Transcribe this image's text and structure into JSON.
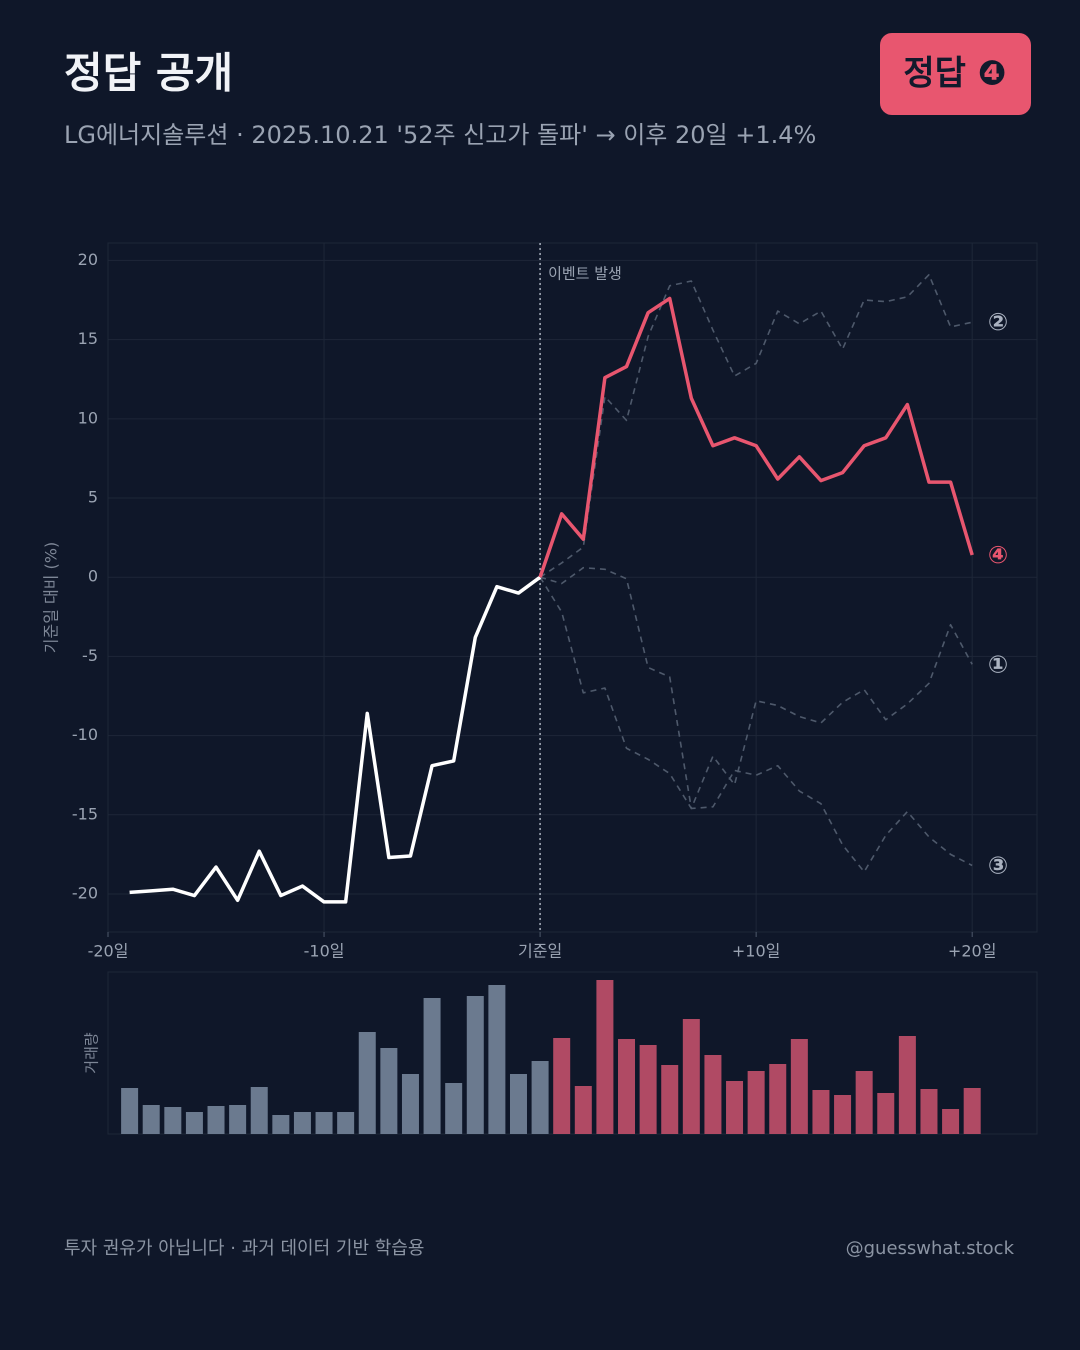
{
  "header": {
    "title": "정답 공개",
    "subtitle": "LG에너지솔루션 · 2025.10.21 '52주 신고가 돌파' → 이후 20일 +1.4%",
    "badge": "정답 ❹"
  },
  "footer": {
    "note": "투자 권유가 아닙니다 · 과거 데이터 기반 학습용",
    "handle": "@guesswhat.stock"
  },
  "chart_data": [
    {
      "type": "line",
      "ylabel": "기준일 대비 (%)",
      "annotation": "이벤트 발생",
      "event_x": 0,
      "xlim": [
        -20,
        23
      ],
      "ylim": [
        -22.4,
        21.1
      ],
      "xticks": [
        {
          "value": -20,
          "label": "-20일"
        },
        {
          "value": -10,
          "label": "-10일"
        },
        {
          "value": 0,
          "label": "기준일"
        },
        {
          "value": 10,
          "label": "+10일"
        },
        {
          "value": 20,
          "label": "+20일"
        }
      ],
      "yticks": [
        -20,
        -15,
        -10,
        -5,
        0,
        5,
        10,
        15,
        20
      ],
      "grid": true,
      "series": [
        {
          "color": "#4e596b",
          "dashed": true,
          "name": "②",
          "x": [
            0,
            1,
            2,
            3,
            4,
            5,
            6,
            7,
            8,
            9,
            10,
            11,
            12,
            13,
            14,
            15,
            16,
            17,
            18,
            19,
            20
          ],
          "values": [
            0,
            0.9,
            1.9,
            11.4,
            9.9,
            15.2,
            18.4,
            18.7,
            15.6,
            12.7,
            13.5,
            16.8,
            16.0,
            16.8,
            14.4,
            17.5,
            17.4,
            17.7,
            19.1,
            15.8,
            16.1
          ]
        },
        {
          "color": "#4e596b",
          "dashed": true,
          "name": "①",
          "x": [
            0,
            1,
            2,
            3,
            4,
            5,
            6,
            7,
            8,
            9,
            10,
            11,
            12,
            13,
            14,
            15,
            16,
            17,
            18,
            19,
            20
          ],
          "values": [
            0,
            -2.2,
            -7.3,
            -7.0,
            -10.8,
            -11.5,
            -12.4,
            -14.6,
            -11.3,
            -13.1,
            -7.8,
            -8.1,
            -8.8,
            -9.2,
            -7.9,
            -7.1,
            -9.0,
            -8.0,
            -6.7,
            -3.0,
            -5.5
          ]
        },
        {
          "color": "#4e596b",
          "dashed": true,
          "name": "③",
          "x": [
            0,
            1,
            2,
            3,
            4,
            5,
            6,
            7,
            8,
            9,
            10,
            11,
            12,
            13,
            14,
            15,
            16,
            17,
            18,
            19,
            20
          ],
          "values": [
            0,
            -0.4,
            0.6,
            0.5,
            -0.1,
            -5.7,
            -6.3,
            -14.6,
            -14.5,
            -12.2,
            -12.5,
            -11.9,
            -13.5,
            -14.3,
            -16.9,
            -18.6,
            -16.3,
            -14.8,
            -16.4,
            -17.5,
            -18.2
          ]
        },
        {
          "color": "#ffffff",
          "dashed": false,
          "x": [
            -19,
            -18,
            -17,
            -16,
            -15,
            -14,
            -13,
            -12,
            -11,
            -10,
            -9,
            -8,
            -7,
            -6,
            -5,
            -4,
            -3,
            -2,
            -1,
            0
          ],
          "values": [
            -19.9,
            -19.8,
            -19.7,
            -20.1,
            -18.3,
            -20.4,
            -17.3,
            -20.1,
            -19.5,
            -20.5,
            -20.5,
            -8.6,
            -17.7,
            -17.6,
            -11.9,
            -11.6,
            -3.8,
            -0.6,
            -1.0,
            0
          ]
        },
        {
          "color": "#e8566f",
          "dashed": false,
          "name": "④",
          "x": [
            0,
            1,
            2,
            3,
            4,
            5,
            6,
            7,
            8,
            9,
            10,
            11,
            12,
            13,
            14,
            15,
            16,
            17,
            18,
            19,
            20
          ],
          "values": [
            0,
            4.0,
            2.4,
            12.6,
            13.3,
            16.7,
            17.6,
            11.3,
            8.3,
            8.8,
            8.3,
            6.2,
            7.6,
            6.1,
            6.6,
            8.3,
            8.8,
            10.9,
            6.0,
            6.0,
            1.4
          ]
        }
      ]
    },
    {
      "type": "bar",
      "ylabel": "거래량",
      "xlim": [
        -20,
        23
      ],
      "ylim": [
        0,
        162
      ],
      "series": [
        {
          "color": "#6b7a8f",
          "x": [
            -19,
            -18,
            -17,
            -16,
            -15,
            -14,
            -13,
            -12,
            -11,
            -10,
            -9,
            -8,
            -7,
            -6,
            -5,
            -4,
            -3,
            -2,
            -1,
            0
          ],
          "values": [
            46,
            29,
            27,
            22,
            28,
            29,
            47,
            19,
            22,
            22,
            22,
            102,
            86,
            60,
            136,
            51,
            138,
            149,
            60,
            73
          ]
        },
        {
          "color": "#b04a64",
          "x": [
            1,
            2,
            3,
            4,
            5,
            6,
            7,
            8,
            9,
            10,
            11,
            12,
            13,
            14,
            15,
            16,
            17,
            18,
            19,
            20
          ],
          "values": [
            96,
            48,
            154,
            95,
            89,
            69,
            115,
            79,
            53,
            63,
            70,
            95,
            44,
            39,
            63,
            41,
            98,
            45,
            25,
            46
          ]
        }
      ]
    }
  ]
}
